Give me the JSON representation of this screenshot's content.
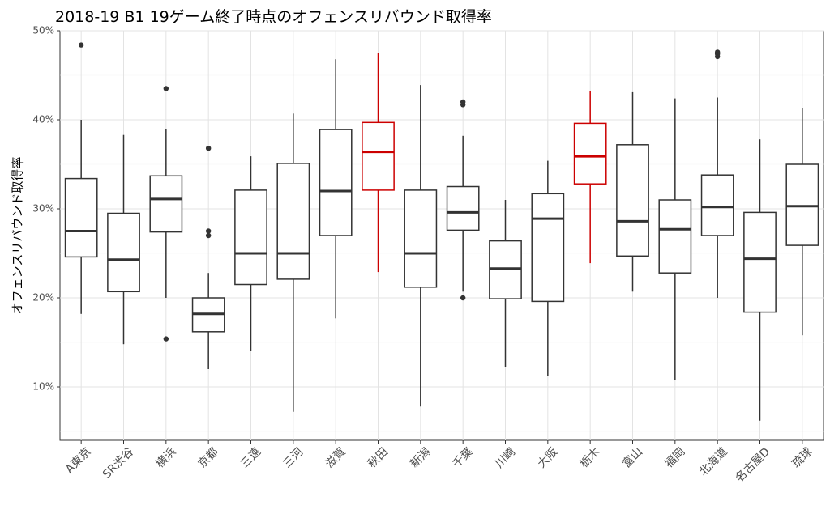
{
  "chart_data": {
    "type": "boxplot",
    "title": "2018-19 B1 19ゲーム終了時点のオフェンスリバウンド取得率",
    "xlabel": "",
    "ylabel": "オフェンスリバウンド取得率",
    "ylim": [
      0.04,
      0.5
    ],
    "yticks": [
      0.1,
      0.2,
      0.3,
      0.4,
      0.5
    ],
    "ytick_labels": [
      "10%",
      "20%",
      "30%",
      "40%",
      "50%"
    ],
    "grid": true,
    "highlight_color": "#cc0000",
    "default_color": "#333333",
    "categories": [
      "A東京",
      "SR渋谷",
      "横浜",
      "京都",
      "三遠",
      "三河",
      "滋賀",
      "秋田",
      "新潟",
      "千葉",
      "川崎",
      "大阪",
      "栃木",
      "富山",
      "福岡",
      "北海道",
      "名古屋D",
      "琉球"
    ],
    "boxes": [
      {
        "min": 0.182,
        "q1": 0.246,
        "median": 0.275,
        "q3": 0.334,
        "max": 0.4,
        "outliers": [
          0.484
        ],
        "highlight": false
      },
      {
        "min": 0.148,
        "q1": 0.207,
        "median": 0.243,
        "q3": 0.295,
        "max": 0.383,
        "outliers": [],
        "highlight": false
      },
      {
        "min": 0.2,
        "q1": 0.274,
        "median": 0.311,
        "q3": 0.337,
        "max": 0.39,
        "outliers": [
          0.154,
          0.435
        ],
        "highlight": false
      },
      {
        "min": 0.12,
        "q1": 0.162,
        "median": 0.182,
        "q3": 0.2,
        "max": 0.228,
        "outliers": [
          0.27,
          0.275,
          0.368
        ],
        "highlight": false
      },
      {
        "min": 0.14,
        "q1": 0.215,
        "median": 0.25,
        "q3": 0.321,
        "max": 0.359,
        "outliers": [],
        "highlight": false
      },
      {
        "min": 0.072,
        "q1": 0.221,
        "median": 0.25,
        "q3": 0.351,
        "max": 0.407,
        "outliers": [],
        "highlight": false
      },
      {
        "min": 0.177,
        "q1": 0.27,
        "median": 0.32,
        "q3": 0.389,
        "max": 0.468,
        "outliers": [],
        "highlight": false
      },
      {
        "min": 0.229,
        "q1": 0.321,
        "median": 0.364,
        "q3": 0.397,
        "max": 0.475,
        "outliers": [],
        "highlight": true
      },
      {
        "min": 0.078,
        "q1": 0.212,
        "median": 0.25,
        "q3": 0.321,
        "max": 0.439,
        "outliers": [],
        "highlight": false
      },
      {
        "min": 0.207,
        "q1": 0.276,
        "median": 0.296,
        "q3": 0.325,
        "max": 0.382,
        "outliers": [
          0.2,
          0.417,
          0.42
        ],
        "highlight": false
      },
      {
        "min": 0.122,
        "q1": 0.199,
        "median": 0.233,
        "q3": 0.264,
        "max": 0.31,
        "outliers": [],
        "highlight": false
      },
      {
        "min": 0.112,
        "q1": 0.196,
        "median": 0.289,
        "q3": 0.317,
        "max": 0.354,
        "outliers": [],
        "highlight": false
      },
      {
        "min": 0.239,
        "q1": 0.328,
        "median": 0.359,
        "q3": 0.396,
        "max": 0.432,
        "outliers": [],
        "highlight": true
      },
      {
        "min": 0.207,
        "q1": 0.247,
        "median": 0.286,
        "q3": 0.372,
        "max": 0.431,
        "outliers": [],
        "highlight": false
      },
      {
        "min": 0.108,
        "q1": 0.228,
        "median": 0.277,
        "q3": 0.31,
        "max": 0.424,
        "outliers": [],
        "highlight": false
      },
      {
        "min": 0.2,
        "q1": 0.27,
        "median": 0.302,
        "q3": 0.338,
        "max": 0.425,
        "outliers": [
          0.471,
          0.474,
          0.476
        ],
        "highlight": false
      },
      {
        "min": 0.062,
        "q1": 0.184,
        "median": 0.244,
        "q3": 0.296,
        "max": 0.378,
        "outliers": [],
        "highlight": false
      },
      {
        "min": 0.158,
        "q1": 0.259,
        "median": 0.303,
        "q3": 0.35,
        "max": 0.413,
        "outliers": [],
        "highlight": false
      }
    ]
  }
}
